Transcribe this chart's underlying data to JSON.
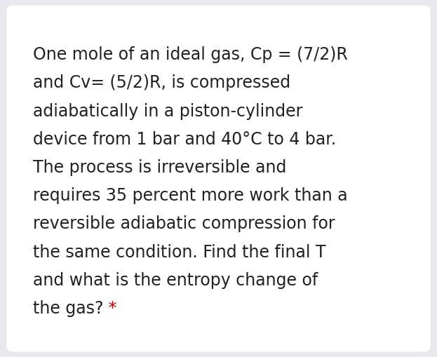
{
  "lines": [
    "One mole of an ideal gas, Cp = (7/2)R",
    "and Cv= (5/2)R, is compressed",
    "adiabatically in a piston-cylinder",
    "device from 1 bar and 40°C to 4 bar.",
    "The process is irreversible and",
    "requires 35 percent more work than a",
    "reversible adiabatic compression for",
    "the same condition. Find the final T",
    "and what is the entropy change of",
    "the gas?"
  ],
  "star_text": " *",
  "star_color": "#cc0000",
  "background_color": "#e8e8ee",
  "card_color": "#ffffff",
  "text_color": "#212121",
  "font_size": 17.0,
  "fig_width": 6.23,
  "fig_height": 5.09
}
